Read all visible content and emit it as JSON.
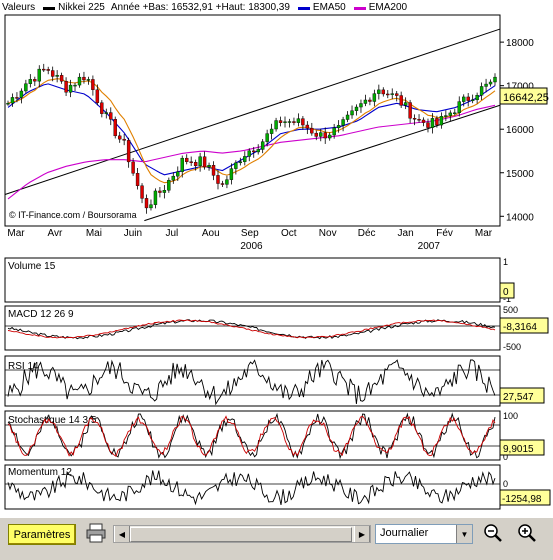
{
  "legend": {
    "label": "Valeurs",
    "series_name": "Nikkei 225",
    "info": "Année +Bas: 16532,91 +Haut: 18300,39",
    "ema50": "EMA50",
    "ema200": "EMA200",
    "colors": {
      "price": "#000000",
      "ema50": "#0000cc",
      "ema200": "#cc00cc",
      "ema_short": "#e08000"
    }
  },
  "watermark": "© IT-Finance.com / Boursorama",
  "price_badge": "16642,25",
  "x_axis": {
    "months": [
      "Mar",
      "Avr",
      "Mai",
      "Juin",
      "Jul",
      "Aou",
      "Sep",
      "Oct",
      "Nov",
      "Déc",
      "Jan",
      "Fév",
      "Mar"
    ],
    "years": [
      "2006",
      "2007"
    ]
  },
  "panels": {
    "volume": {
      "title": "Volume 15",
      "ticks": [
        "1",
        "-1"
      ],
      "badge": "0"
    },
    "macd": {
      "title": "MACD 12 26 9",
      "ticks": [
        "500",
        "-500"
      ],
      "badge": "-8,3164"
    },
    "rsi": {
      "title": "RSI 14",
      "badge": "27,547"
    },
    "stoch": {
      "title": "Stochastique 14 3 5",
      "ticks": [
        "100",
        "0"
      ],
      "badge": "9,9015"
    },
    "momentum": {
      "title": "Momentum 12",
      "ticks": [
        "0"
      ],
      "badge": "-1254,98"
    }
  },
  "toolbar": {
    "params_label": "Paramètres",
    "period_select": "Journalier"
  },
  "chart_data": {
    "type": "line",
    "title": "Nikkei 225",
    "ylim": [
      13800,
      18600
    ],
    "yticks": [
      14000,
      15000,
      16000,
      17000,
      18000
    ],
    "grid": false,
    "legend_placement": "top",
    "months": [
      "Mar",
      "Avr",
      "Mai",
      "Juin",
      "Jul",
      "Aou",
      "Sep",
      "Oct",
      "Nov",
      "Déc",
      "Jan",
      "Fév",
      "Mar"
    ],
    "x_month_index": [
      0,
      0.5,
      1,
      1.5,
      2,
      2.5,
      3,
      3.5,
      4,
      4.5,
      5,
      5.5,
      6,
      6.5,
      7,
      7.5,
      8,
      8.5,
      9,
      9.5,
      10,
      10.5,
      11,
      11.5,
      12,
      12.5
    ],
    "series": [
      {
        "name": "Nikkei 225",
        "values": [
          16600,
          17100,
          17400,
          16950,
          17250,
          16300,
          15600,
          14200,
          14650,
          15300,
          15250,
          14700,
          15400,
          15700,
          16200,
          16150,
          15850,
          16000,
          16500,
          16950,
          16700,
          16200,
          16100,
          16500,
          16850,
          17100
        ]
      },
      {
        "name": "EMA50",
        "values": [
          16500,
          16850,
          17050,
          16900,
          16800,
          16400,
          15900,
          15200,
          14950,
          15050,
          15150,
          15050,
          15300,
          15550,
          15900,
          16000,
          16000,
          16050,
          16200,
          16500,
          16600,
          16450,
          16400,
          16500,
          16700,
          17000
        ]
      },
      {
        "name": "EMA200",
        "values": [
          14400,
          14750,
          15000,
          15150,
          15250,
          15300,
          15300,
          15250,
          15350,
          15450,
          15500,
          15450,
          15500,
          15600,
          15700,
          15750,
          15800,
          15850,
          15950,
          16050,
          16100,
          16150,
          16200,
          16300,
          16450,
          16550
        ]
      }
    ]
  }
}
